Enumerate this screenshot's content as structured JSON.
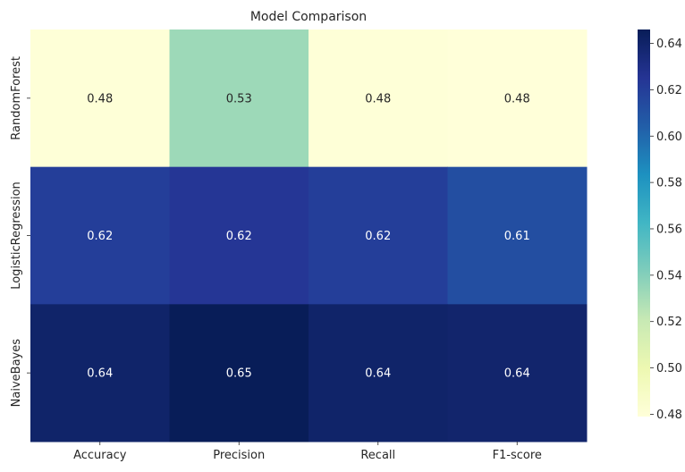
{
  "chart_data": {
    "type": "heatmap",
    "title": "Model Comparison",
    "xlabel": "",
    "ylabel": "",
    "columns": [
      "Accuracy",
      "Precision",
      "Recall",
      "F1-score"
    ],
    "rows": [
      "RandomForest",
      "LogisticRegression",
      "NaiveBayes"
    ],
    "values": [
      [
        0.48,
        0.533,
        0.48,
        0.479
      ],
      [
        0.62,
        0.624,
        0.62,
        0.612
      ],
      [
        0.64,
        0.646,
        0.64,
        0.639
      ]
    ],
    "annotations": [
      [
        "0.48",
        "0.53",
        "0.48",
        "0.48"
      ],
      [
        "0.62",
        "0.62",
        "0.62",
        "0.61"
      ],
      [
        "0.64",
        "0.65",
        "0.64",
        "0.64"
      ]
    ],
    "colormap": "YlGnBu",
    "colorbar": {
      "range": [
        0.479,
        0.646
      ],
      "ticks": [
        0.48,
        0.5,
        0.52,
        0.54,
        0.56,
        0.58,
        0.6,
        0.62,
        0.64
      ],
      "tick_labels": [
        "0.48",
        "0.50",
        "0.52",
        "0.54",
        "0.56",
        "0.58",
        "0.60",
        "0.62",
        "0.64"
      ]
    }
  }
}
